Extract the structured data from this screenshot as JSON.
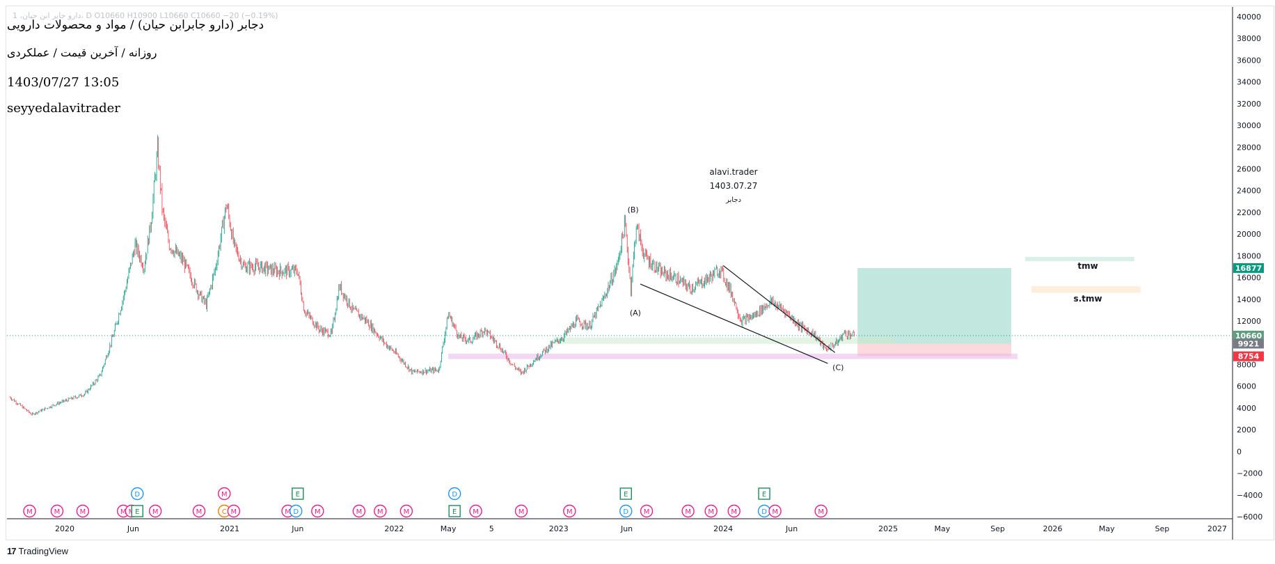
{
  "legend": {
    "text": "1 ،دارو جابر ابن حیان، D  O10660  H10900  L10660  C10660  −20 (−0.19%)"
  },
  "header": {
    "title": "دجابر (دارو جابرابن حیان) / مواد و محصولات دارویی",
    "subtitle": "روزانه / آخرین قیمت / عملکردی",
    "datetime": "1403/07/27 13:05",
    "author": "seyyedalavitrader"
  },
  "watermark": {
    "name": "alavi.trader",
    "date": "1403.07.27",
    "symbol": "دجابر"
  },
  "branding": {
    "logo_mark": "17",
    "logo_text": "TradingView"
  },
  "chart_data": {
    "type": "candlestick",
    "title": "دجابر (دارو جابرابن حیان) / مواد و محصولات دارویی",
    "timeframe": "روزانه",
    "y_axis": {
      "min": -6000,
      "max": 40000,
      "step": 2000,
      "position": "right",
      "ticks": [
        "40000",
        "38000",
        "36000",
        "34000",
        "32000",
        "30000",
        "28000",
        "26000",
        "24000",
        "22000",
        "20000",
        "18000",
        "16000",
        "14000",
        "12000",
        "10000",
        "8000",
        "6000",
        "4000",
        "2000",
        "0",
        "−2000",
        "−4000",
        "−6000"
      ]
    },
    "x_axis": {
      "range": [
        "2019-09-01",
        "2027-01-15"
      ],
      "ticks": [
        {
          "label": "2020",
          "date": "2020-01-01"
        },
        {
          "label": "Jun",
          "date": "2020-06-01"
        },
        {
          "label": "2021",
          "date": "2021-01-01"
        },
        {
          "label": "Jun",
          "date": "2021-06-01"
        },
        {
          "label": "2022",
          "date": "2022-01-01"
        },
        {
          "label": "May",
          "date": "2022-05-01"
        },
        {
          "label": "5",
          "date": "2022-08-05"
        },
        {
          "label": "2023",
          "date": "2023-01-01"
        },
        {
          "label": "Jun",
          "date": "2023-06-01"
        },
        {
          "label": "2024",
          "date": "2024-01-01"
        },
        {
          "label": "Jun",
          "date": "2024-06-01"
        },
        {
          "label": "2025",
          "date": "2025-01-01"
        },
        {
          "label": "May",
          "date": "2025-05-01"
        },
        {
          "label": "Sep",
          "date": "2025-09-01"
        },
        {
          "label": "2026",
          "date": "2026-01-01"
        },
        {
          "label": "May",
          "date": "2026-05-01"
        },
        {
          "label": "Sep",
          "date": "2026-09-01"
        },
        {
          "label": "2027",
          "date": "2027-01-01"
        }
      ]
    },
    "price_path": [
      [
        "2019-09-01",
        5000
      ],
      [
        "2019-10-20",
        3400
      ],
      [
        "2019-12-15",
        4400
      ],
      [
        "2020-02-15",
        5300
      ],
      [
        "2020-03-20",
        7000
      ],
      [
        "2020-04-20",
        11000
      ],
      [
        "2020-05-15",
        15000
      ],
      [
        "2020-06-05",
        19000
      ],
      [
        "2020-06-25",
        17000
      ],
      [
        "2020-07-10",
        21000
      ],
      [
        "2020-07-25",
        27700
      ],
      [
        "2020-08-05",
        22000
      ],
      [
        "2020-08-20",
        19000
      ],
      [
        "2020-09-20",
        17500
      ],
      [
        "2020-10-25",
        14500
      ],
      [
        "2020-11-10",
        13500
      ],
      [
        "2020-12-01",
        17000
      ],
      [
        "2020-12-25",
        22800
      ],
      [
        "2021-01-10",
        19000
      ],
      [
        "2021-02-01",
        17000
      ],
      [
        "2021-03-05",
        17000
      ],
      [
        "2021-04-15",
        16600
      ],
      [
        "2021-06-01",
        16600
      ],
      [
        "2021-06-15",
        13000
      ],
      [
        "2021-07-20",
        11200
      ],
      [
        "2021-08-15",
        10800
      ],
      [
        "2021-09-01",
        15200
      ],
      [
        "2021-10-01",
        13000
      ],
      [
        "2021-11-01",
        12000
      ],
      [
        "2021-12-10",
        10000
      ],
      [
        "2022-01-05",
        9000
      ],
      [
        "2022-02-10",
        7300
      ],
      [
        "2022-04-10",
        7500
      ],
      [
        "2022-05-01",
        12700
      ],
      [
        "2022-05-25",
        10500
      ],
      [
        "2022-06-20",
        10200
      ],
      [
        "2022-07-20",
        11200
      ],
      [
        "2022-08-20",
        9800
      ],
      [
        "2022-09-20",
        8000
      ],
      [
        "2022-10-10",
        7200
      ],
      [
        "2022-11-10",
        8500
      ],
      [
        "2022-12-10",
        9600
      ],
      [
        "2023-01-10",
        10500
      ],
      [
        "2023-02-10",
        12000
      ],
      [
        "2023-03-10",
        11500
      ],
      [
        "2023-04-10",
        14000
      ],
      [
        "2023-05-10",
        17000
      ],
      [
        "2023-05-28",
        21000
      ],
      [
        "2023-06-10",
        15000
      ],
      [
        "2023-06-22",
        20800
      ],
      [
        "2023-07-10",
        18000
      ],
      [
        "2023-08-15",
        16500
      ],
      [
        "2023-09-15",
        16000
      ],
      [
        "2023-10-20",
        15000
      ],
      [
        "2023-11-25",
        15800
      ],
      [
        "2023-12-25",
        16800
      ],
      [
        "2024-01-20",
        14500
      ],
      [
        "2024-02-10",
        12000
      ],
      [
        "2024-03-10",
        12500
      ],
      [
        "2024-04-15",
        13800
      ],
      [
        "2024-05-15",
        13000
      ],
      [
        "2024-06-20",
        11500
      ],
      [
        "2024-07-20",
        10800
      ],
      [
        "2024-08-15",
        9400
      ],
      [
        "2024-09-10",
        10000
      ],
      [
        "2024-09-25",
        10900
      ],
      [
        "2024-10-18",
        10660
      ]
    ],
    "last_price": 10660,
    "price_labels": [
      {
        "value": "16877",
        "color": "#089981"
      },
      {
        "value": "10660",
        "color": "#5e9e7e"
      },
      {
        "value": "9921",
        "color": "#787b86"
      },
      {
        "value": "8754",
        "color": "#f23645"
      }
    ],
    "wave_labels": [
      {
        "text": "(B)",
        "date": "2023-06-15",
        "value": 22000
      },
      {
        "text": "(A)",
        "date": "2023-06-20",
        "value": 12500
      },
      {
        "text": "(C)",
        "date": "2024-09-12",
        "value": 7500
      }
    ],
    "trendlines": [
      {
        "from": [
          "2023-07-01",
          15400
        ],
        "to": [
          "2024-08-20",
          8100
        ]
      },
      {
        "from": [
          "2024-01-01",
          17100
        ],
        "to": [
          "2024-09-05",
          9100
        ]
      }
    ],
    "zones": [
      {
        "kind": "target",
        "from": [
          "2024-10-25",
          16877
        ],
        "to": [
          "2025-10-01",
          9921
        ],
        "color": "#8fd3c2"
      },
      {
        "kind": "stop",
        "from": [
          "2024-10-25",
          9921
        ],
        "to": [
          "2025-10-01",
          8754
        ],
        "color": "#f7b9bf"
      },
      {
        "kind": "support",
        "from": [
          "2022-05-01",
          9000
        ],
        "to": [
          "2025-10-15",
          8500
        ],
        "color": "#e8b8e8"
      },
      {
        "kind": "support",
        "from": [
          "2022-12-20",
          10500
        ],
        "to": [
          "2025-01-15",
          9900
        ],
        "color": "#cde9cd"
      },
      {
        "kind": "tmw",
        "from": [
          "2025-11-01",
          17900
        ],
        "to": [
          "2026-07-01",
          17500
        ],
        "color": "#b9e4d6"
      },
      {
        "kind": "s.tmw",
        "from": [
          "2025-11-15",
          15200
        ],
        "to": [
          "2026-07-15",
          14600
        ],
        "color": "#fde0bf"
      }
    ],
    "zone_labels": [
      {
        "text": "tmw",
        "date": "2026-03-20",
        "value": 16800
      },
      {
        "text": "s.tmw",
        "date": "2026-03-20",
        "value": 13800
      }
    ],
    "event_markers": [
      {
        "date": "2019-10-15",
        "row": 0,
        "letter": "M",
        "color": "#e91e8c"
      },
      {
        "date": "2019-12-15",
        "row": 0,
        "letter": "M",
        "color": "#e91e8c"
      },
      {
        "date": "2020-02-10",
        "row": 0,
        "letter": "M",
        "color": "#e91e8c"
      },
      {
        "date": "2020-05-10",
        "row": 0,
        "letter": "M",
        "color": "#e91e8c"
      },
      {
        "date": "2020-05-28",
        "row": 0,
        "letter": "M",
        "color": "#e91e8c"
      },
      {
        "date": "2020-06-10",
        "row": 0,
        "letter": "E",
        "color": "#1e8a5a",
        "square": true
      },
      {
        "date": "2020-07-20",
        "row": 0,
        "letter": "M",
        "color": "#e91e8c"
      },
      {
        "date": "2020-06-10",
        "row": 1,
        "letter": "D",
        "color": "#2196f3"
      },
      {
        "date": "2020-10-25",
        "row": 0,
        "letter": "M",
        "color": "#e91e8c"
      },
      {
        "date": "2020-12-20",
        "row": 0,
        "letter": "C",
        "color": "#f57c00"
      },
      {
        "date": "2021-01-10",
        "row": 0,
        "letter": "M",
        "color": "#e91e8c"
      },
      {
        "date": "2020-12-20",
        "row": 1,
        "letter": "M",
        "color": "#e91e8c"
      },
      {
        "date": "2021-05-10",
        "row": 0,
        "letter": "M",
        "color": "#e91e8c"
      },
      {
        "date": "2021-05-28",
        "row": 0,
        "letter": "D",
        "color": "#2196f3"
      },
      {
        "date": "2021-06-01",
        "row": 1,
        "letter": "E",
        "color": "#1e8a5a",
        "square": true
      },
      {
        "date": "2021-07-15",
        "row": 0,
        "letter": "M",
        "color": "#e91e8c"
      },
      {
        "date": "2021-10-15",
        "row": 0,
        "letter": "M",
        "color": "#e91e8c"
      },
      {
        "date": "2021-12-01",
        "row": 0,
        "letter": "M",
        "color": "#e91e8c"
      },
      {
        "date": "2022-01-28",
        "row": 0,
        "letter": "M",
        "color": "#e91e8c"
      },
      {
        "date": "2022-05-15",
        "row": 0,
        "letter": "E",
        "color": "#1e8a5a",
        "square": true
      },
      {
        "date": "2022-05-15",
        "row": 1,
        "letter": "D",
        "color": "#2196f3"
      },
      {
        "date": "2022-07-01",
        "row": 0,
        "letter": "M",
        "color": "#e91e8c"
      },
      {
        "date": "2022-10-10",
        "row": 0,
        "letter": "M",
        "color": "#e91e8c"
      },
      {
        "date": "2023-01-25",
        "row": 0,
        "letter": "M",
        "color": "#e91e8c"
      },
      {
        "date": "2023-05-30",
        "row": 0,
        "letter": "D",
        "color": "#2196f3"
      },
      {
        "date": "2023-05-30",
        "row": 1,
        "letter": "E",
        "color": "#1e8a5a",
        "square": true
      },
      {
        "date": "2023-07-15",
        "row": 0,
        "letter": "M",
        "color": "#e91e8c"
      },
      {
        "date": "2023-10-15",
        "row": 0,
        "letter": "M",
        "color": "#e91e8c"
      },
      {
        "date": "2023-12-05",
        "row": 0,
        "letter": "M",
        "color": "#e91e8c"
      },
      {
        "date": "2024-01-25",
        "row": 0,
        "letter": "M",
        "color": "#e91e8c"
      },
      {
        "date": "2024-04-01",
        "row": 0,
        "letter": "D",
        "color": "#2196f3"
      },
      {
        "date": "2024-04-25",
        "row": 0,
        "letter": "M",
        "color": "#e91e8c"
      },
      {
        "date": "2024-04-01",
        "row": 1,
        "letter": "E",
        "color": "#1e8a5a",
        "square": true
      },
      {
        "date": "2024-08-05",
        "row": 0,
        "letter": "M",
        "color": "#e91e8c"
      }
    ],
    "colors": {
      "up": "#089981",
      "down": "#f23645",
      "grid": "#f0f3fa",
      "text": "#131722"
    }
  }
}
